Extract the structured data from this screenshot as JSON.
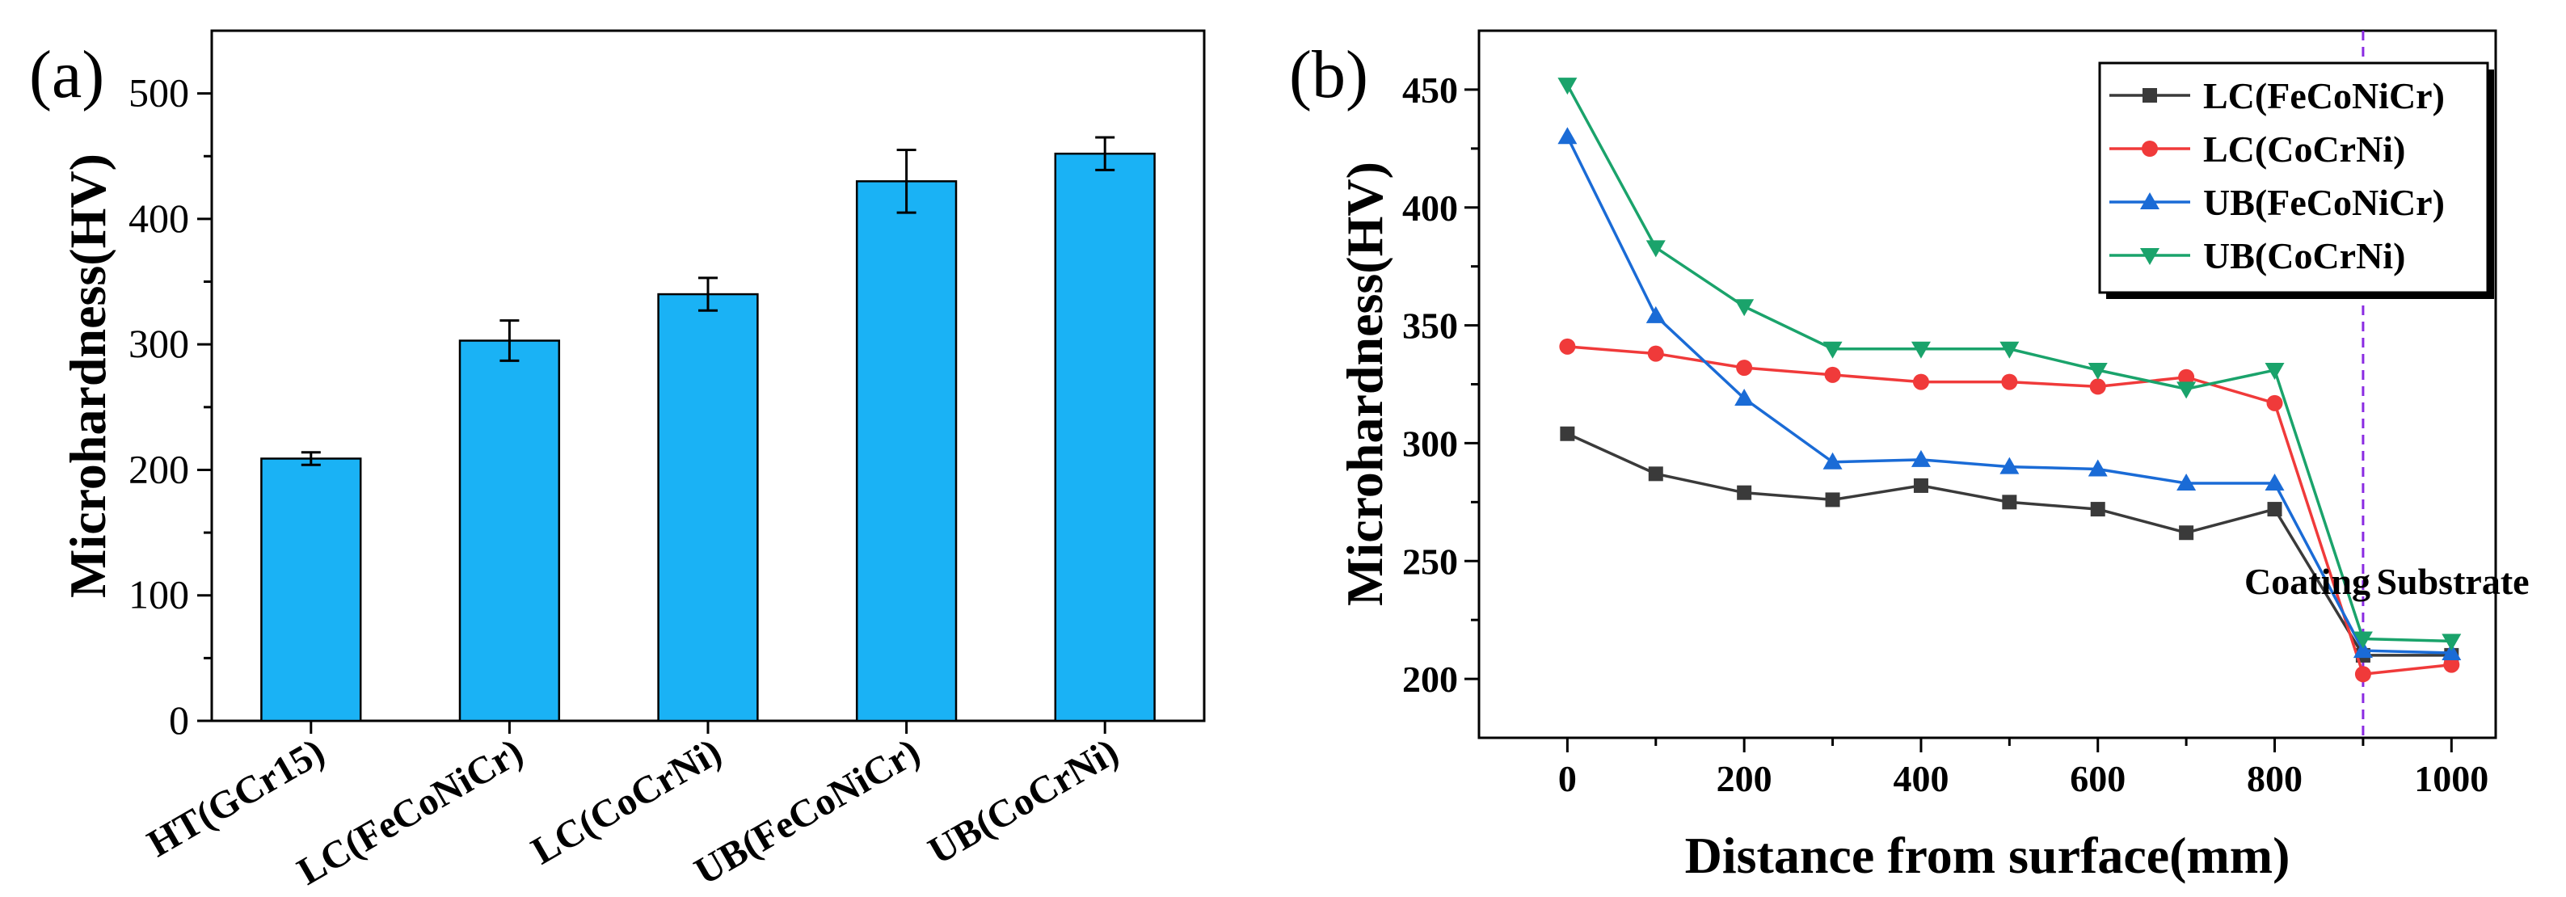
{
  "panels": {
    "a": {
      "label": "(a)"
    },
    "b": {
      "label": "(b)"
    }
  },
  "colors": {
    "bar_fill": "#1ab2f5",
    "axis": "#000000",
    "series": [
      "#3a3a3a",
      "#f03a3a",
      "#1a6bd6",
      "#1aa36b"
    ],
    "marker_line": "#8b2be2"
  },
  "chart_data": [
    {
      "type": "bar",
      "panel": "a",
      "categories": [
        "HT(GCr15)",
        "LC(FeCoNiCr)",
        "LC(CoCrNi)",
        "UB(FeCoNiCr)",
        "UB(CoCrNi)"
      ],
      "values": [
        209,
        303,
        340,
        430,
        452
      ],
      "error": [
        5,
        16,
        13,
        25,
        13
      ],
      "xlabel": "",
      "ylabel": "Microhardness(HV)",
      "ylim": [
        0,
        550
      ],
      "yticks": [
        0,
        100,
        200,
        300,
        400,
        500
      ],
      "grid": false
    },
    {
      "type": "line",
      "panel": "b",
      "x": [
        0,
        100,
        200,
        300,
        400,
        500,
        600,
        700,
        800,
        900,
        1000
      ],
      "series": [
        {
          "name": "LC(FeCoNiCr)",
          "marker": "square",
          "values": [
            304,
            287,
            279,
            276,
            282,
            275,
            272,
            262,
            272,
            210,
            210
          ]
        },
        {
          "name": "LC(CoCrNi)",
          "marker": "circle",
          "values": [
            341,
            338,
            332,
            329,
            326,
            326,
            324,
            328,
            317,
            202,
            206
          ]
        },
        {
          "name": "UB(FeCoNiCr)",
          "marker": "triangle-up",
          "values": [
            430,
            354,
            319,
            292,
            293,
            290,
            289,
            283,
            283,
            212,
            211
          ]
        },
        {
          "name": "UB(CoCrNi)",
          "marker": "triangle-down",
          "values": [
            452,
            383,
            358,
            340,
            340,
            340,
            331,
            323,
            331,
            217,
            216
          ]
        }
      ],
      "xlabel": "Distance from surface(mm)",
      "ylabel": "Microhardness(HV)",
      "xlim": [
        -100,
        1050
      ],
      "ylim": [
        175,
        475
      ],
      "xticks": [
        0,
        200,
        400,
        600,
        800,
        1000
      ],
      "yticks": [
        200,
        250,
        300,
        350,
        400,
        450
      ],
      "grid": false,
      "legend_position": "top-right",
      "vline": 900,
      "annotations": [
        "Coating",
        "Substrate"
      ]
    }
  ]
}
